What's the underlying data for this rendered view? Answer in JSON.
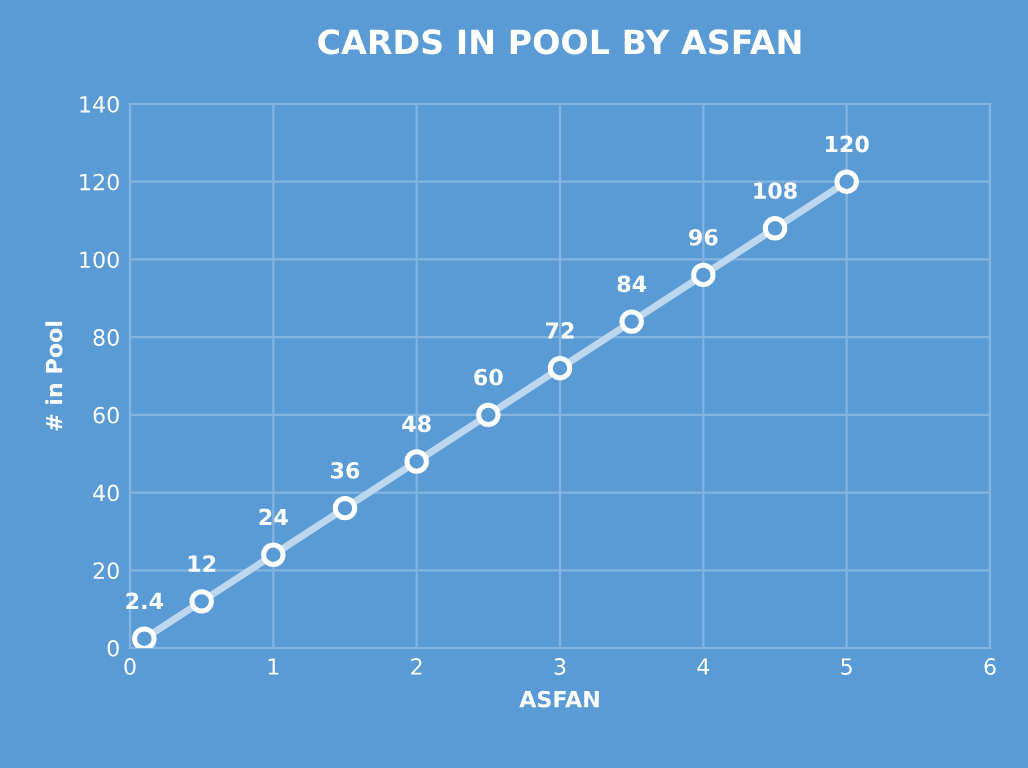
{
  "chart_data": {
    "type": "line",
    "title": "CARDS IN POOL BY ASFAN",
    "xlabel": "ASFAN",
    "ylabel": "# in Pool",
    "series": [
      {
        "color": "#bdd7ee",
        "x": [
          0.1,
          0.5,
          1,
          1.5,
          2,
          2.5,
          3,
          3.5,
          4,
          4.5,
          5
        ],
        "values": [
          2.4,
          12,
          24,
          36,
          48,
          60,
          72,
          84,
          96,
          108,
          120
        ]
      }
    ],
    "xlim": [
      0,
      6
    ],
    "xticks": [
      0,
      1,
      2,
      3,
      4,
      5,
      6
    ],
    "ylim": [
      0,
      140
    ],
    "yticks": [
      0,
      20,
      40,
      60,
      80,
      100,
      120,
      140
    ],
    "grid": true,
    "marker": "circle",
    "line_style": "solid",
    "data_labels": true
  }
}
